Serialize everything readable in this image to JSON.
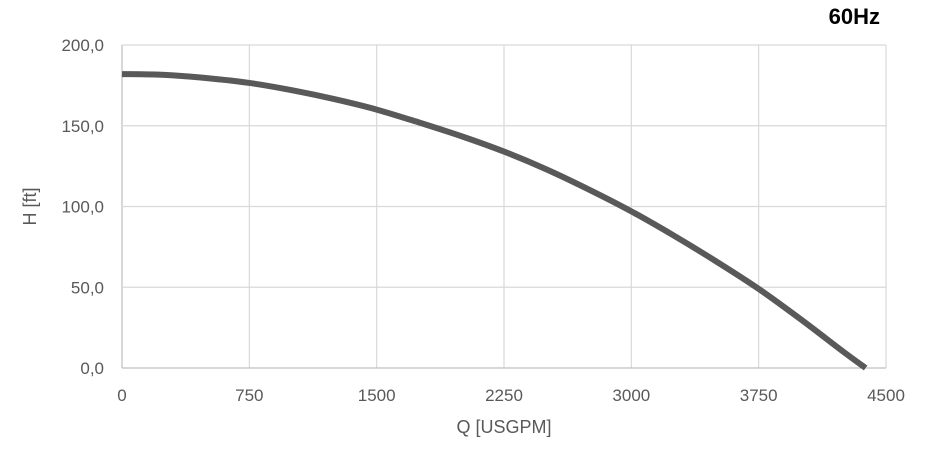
{
  "frequency_label": "60Hz",
  "chart_data": {
    "type": "line",
    "title": "",
    "xlabel": "Q [USGPM]",
    "ylabel": "H [ft]",
    "xlim": [
      0,
      4500
    ],
    "ylim": [
      0,
      200
    ],
    "x_ticks": [
      "0",
      "750",
      "1500",
      "2250",
      "3000",
      "3750",
      "4500"
    ],
    "y_ticks": [
      "0,0",
      "50,0",
      "100,0",
      "150,0",
      "200,0"
    ],
    "x_tick_values": [
      0,
      750,
      1500,
      2250,
      3000,
      3750,
      4500
    ],
    "y_tick_values": [
      0,
      50,
      100,
      150,
      200
    ],
    "grid": true,
    "series": [
      {
        "color": "#595959",
        "x": [
          0,
          250,
          500,
          750,
          1000,
          1250,
          1500,
          1750,
          2000,
          2250,
          2500,
          2750,
          3000,
          3250,
          3500,
          3750,
          4000,
          4250,
          4380
        ],
        "y": [
          182,
          181.5,
          179.5,
          176.5,
          172,
          166.5,
          160,
          152,
          143.5,
          134,
          123,
          110.5,
          97,
          82,
          66,
          49,
          30,
          10,
          0
        ]
      }
    ]
  }
}
